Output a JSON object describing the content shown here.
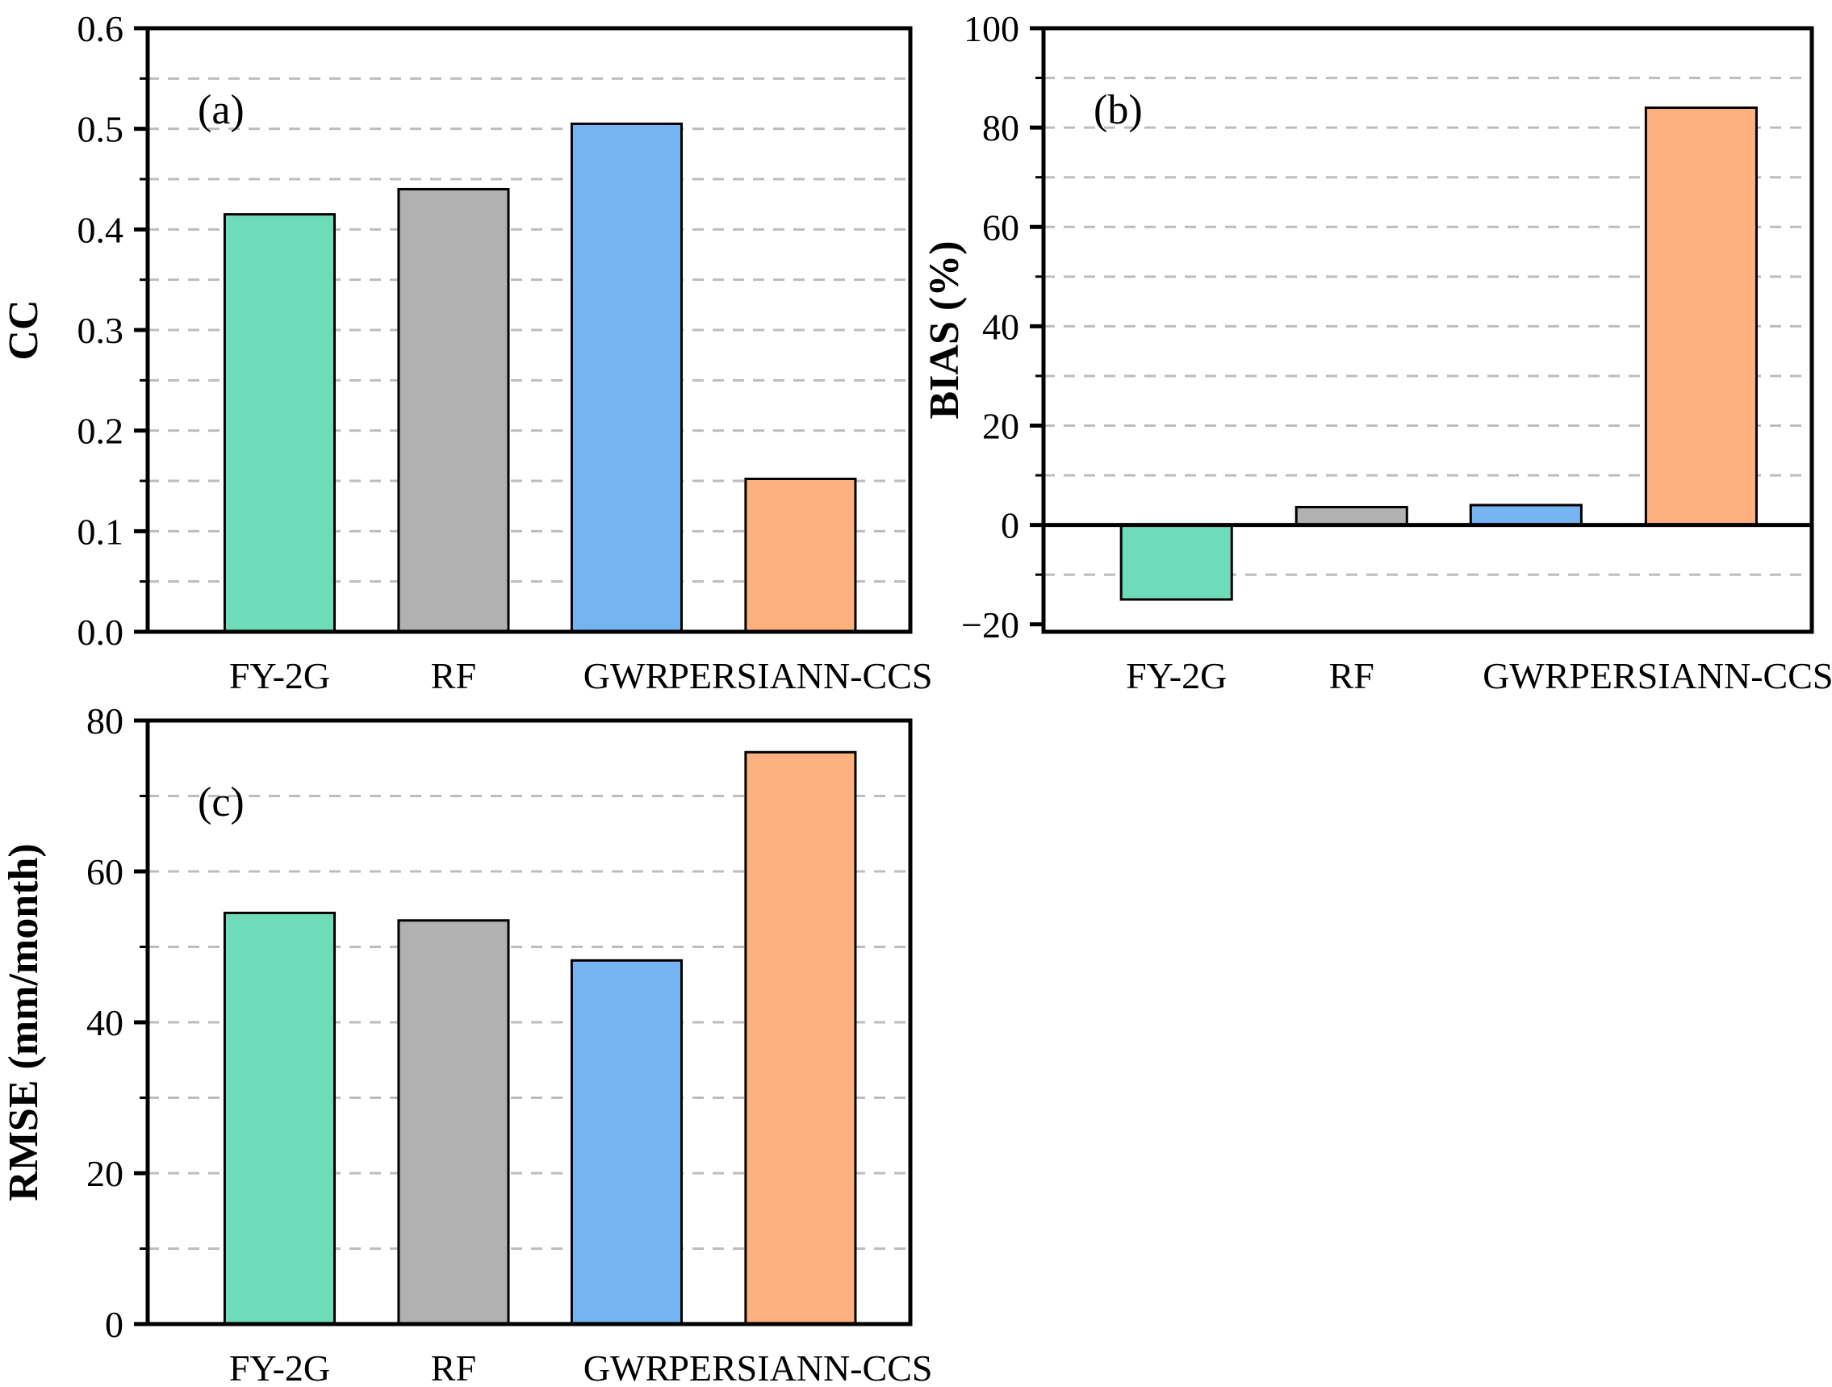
{
  "figure": {
    "background": "#FFFFFF",
    "font_color": "#000000"
  },
  "colors": {
    "fy2g_green": "#6FDCB9",
    "rf_gray": "#B1B1B1",
    "gwr_blue": "#75B4F1",
    "persiann_orange": "#FEB17E",
    "grid": "#BDBDBD",
    "axis": "#000000"
  },
  "chart_data": [
    {
      "id": "a",
      "type": "bar",
      "panel_label": "(a)",
      "ylabel": "CC",
      "xlabel": "",
      "categories": [
        "FY-2G",
        "RF",
        "GWR",
        "PERSIANN-CCS"
      ],
      "values": [
        0.415,
        0.44,
        0.505,
        0.152
      ],
      "bar_colors": [
        "#6FDCB9",
        "#B1B1B1",
        "#75B4F1",
        "#FEB17E"
      ],
      "ylim": [
        0,
        0.6
      ],
      "yticks": [
        0,
        0.1,
        0.2,
        0.3,
        0.4,
        0.5,
        0.6
      ],
      "ytick_labels": [
        "0.0",
        "0.1",
        "0.2",
        "0.3",
        "0.4",
        "0.5",
        "0.6"
      ],
      "minor_ticks": [
        0.05,
        0.15,
        0.25,
        0.35,
        0.45,
        0.55
      ],
      "gridlines": [
        0.05,
        0.1,
        0.15,
        0.2,
        0.25,
        0.3,
        0.35,
        0.4,
        0.45,
        0.5,
        0.55
      ],
      "grid_style": "dashed-horizontal",
      "zero_line": false,
      "legend": "none"
    },
    {
      "id": "b",
      "type": "bar",
      "panel_label": "(b)",
      "ylabel": "BIAS (%)",
      "xlabel": "",
      "categories": [
        "FY-2G",
        "RF",
        "GWR",
        "PERSIANN-CCS"
      ],
      "values": [
        -15,
        3.6,
        4,
        84
      ],
      "bar_colors": [
        "#6FDCB9",
        "#B1B1B1",
        "#75B4F1",
        "#FEB17E"
      ],
      "ylim": [
        -21.5,
        100
      ],
      "yticks": [
        -20,
        0,
        20,
        40,
        60,
        80,
        100
      ],
      "ytick_labels": [
        "−20",
        "0",
        "20",
        "40",
        "60",
        "80",
        "100"
      ],
      "minor_ticks": [
        -10,
        10,
        30,
        50,
        70,
        90
      ],
      "gridlines": [
        -10,
        10,
        20,
        30,
        40,
        50,
        60,
        70,
        80,
        90
      ],
      "grid_style": "dashed-horizontal",
      "zero_line": true,
      "legend": "none"
    },
    {
      "id": "c",
      "type": "bar",
      "panel_label": "(c)",
      "ylabel": "RMSE (mm/month)",
      "xlabel": "",
      "categories": [
        "FY-2G",
        "RF",
        "GWR",
        "PERSIANN-CCS"
      ],
      "values": [
        54.5,
        53.5,
        48.2,
        75.8
      ],
      "bar_colors": [
        "#6FDCB9",
        "#B1B1B1",
        "#75B4F1",
        "#FEB17E"
      ],
      "ylim": [
        0,
        80
      ],
      "yticks": [
        0,
        20,
        40,
        60,
        80
      ],
      "ytick_labels": [
        "0",
        "20",
        "40",
        "60",
        "80"
      ],
      "minor_ticks": [
        10,
        30,
        50,
        70
      ],
      "gridlines": [
        10,
        20,
        30,
        40,
        50,
        60,
        70
      ],
      "grid_style": "dashed-horizontal",
      "zero_line": false,
      "legend": "none"
    }
  ]
}
